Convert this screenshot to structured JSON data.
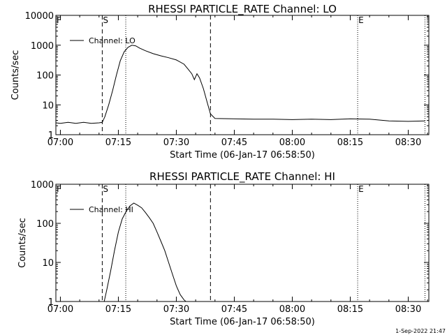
{
  "chart_data": [
    {
      "type": "line",
      "title": "RHESSI PARTICLE_RATE Channel: LO",
      "xlabel": "Start Time (06-Jan-17 06:58:50)",
      "ylabel": "Counts/sec",
      "yscale": "log",
      "xlim": [
        "06:58:50",
        "08:35:20"
      ],
      "ylim": [
        1,
        10000
      ],
      "x_ticks": [
        "07:00",
        "07:15",
        "07:30",
        "07:45",
        "08:00",
        "08:15",
        "08:30"
      ],
      "y_ticks": [
        "1",
        "10",
        "100",
        "1000",
        "10000"
      ],
      "legend": {
        "labels": [
          "Channel: LO"
        ],
        "position": "top-left"
      },
      "markers": [
        {
          "time": "07:10:50",
          "style": "dashed",
          "label": "S"
        },
        {
          "time": "07:16:55",
          "style": "dotted",
          "label": ""
        },
        {
          "time": "07:38:50",
          "style": "dashed",
          "label": ""
        },
        {
          "time": "08:16:55",
          "style": "dotted",
          "label": "E"
        },
        {
          "time": "08:34:20",
          "style": "dotted",
          "label": ""
        }
      ],
      "corner_label": "F",
      "series": [
        {
          "name": "Channel: LO",
          "points": [
            [
              "06:58:50",
              2.5
            ],
            [
              "07:00:00",
              2.4
            ],
            [
              "07:02:00",
              2.6
            ],
            [
              "07:04:00",
              2.4
            ],
            [
              "07:06:00",
              2.6
            ],
            [
              "07:08:00",
              2.4
            ],
            [
              "07:10:00",
              2.5
            ],
            [
              "07:10:50",
              2.6
            ],
            [
              "07:11:30",
              4
            ],
            [
              "07:12:30",
              10
            ],
            [
              "07:13:30",
              30
            ],
            [
              "07:14:30",
              100
            ],
            [
              "07:15:30",
              300
            ],
            [
              "07:16:30",
              600
            ],
            [
              "07:17:30",
              850
            ],
            [
              "07:18:30",
              1000
            ],
            [
              "07:19:30",
              950
            ],
            [
              "07:20:30",
              800
            ],
            [
              "07:22:00",
              650
            ],
            [
              "07:24:00",
              520
            ],
            [
              "07:26:00",
              440
            ],
            [
              "07:28:00",
              380
            ],
            [
              "07:30:00",
              320
            ],
            [
              "07:32:00",
              230
            ],
            [
              "07:33:00",
              160
            ],
            [
              "07:34:00",
              110
            ],
            [
              "07:34:40",
              70
            ],
            [
              "07:35:20",
              110
            ],
            [
              "07:36:00",
              80
            ],
            [
              "07:37:00",
              35
            ],
            [
              "07:38:00",
              12
            ],
            [
              "07:38:50",
              5
            ],
            [
              "07:40:00",
              3.5
            ],
            [
              "07:45:00",
              3.4
            ],
            [
              "07:50:00",
              3.3
            ],
            [
              "07:55:00",
              3.3
            ],
            [
              "08:00:00",
              3.2
            ],
            [
              "08:05:00",
              3.3
            ],
            [
              "08:10:00",
              3.2
            ],
            [
              "08:15:00",
              3.4
            ],
            [
              "08:20:00",
              3.3
            ],
            [
              "08:25:00",
              2.9
            ],
            [
              "08:30:00",
              2.8
            ],
            [
              "08:34:20",
              2.9
            ]
          ]
        }
      ]
    },
    {
      "type": "line",
      "title": "RHESSI PARTICLE_RATE Channel: HI",
      "xlabel": "Start Time (06-Jan-17 06:58:50)",
      "ylabel": "Counts/sec",
      "yscale": "log",
      "xlim": [
        "06:58:50",
        "08:35:20"
      ],
      "ylim": [
        1,
        1000
      ],
      "x_ticks": [
        "07:00",
        "07:15",
        "07:30",
        "07:45",
        "08:00",
        "08:15",
        "08:30"
      ],
      "y_ticks": [
        "1",
        "10",
        "100",
        "1000"
      ],
      "legend": {
        "labels": [
          "Channel: HI"
        ],
        "position": "top-left"
      },
      "markers": [
        {
          "time": "07:10:50",
          "style": "dashed",
          "label": "S"
        },
        {
          "time": "07:16:55",
          "style": "dotted",
          "label": ""
        },
        {
          "time": "07:38:50",
          "style": "dashed",
          "label": ""
        },
        {
          "time": "08:16:55",
          "style": "dotted",
          "label": "E"
        },
        {
          "time": "08:34:20",
          "style": "dotted",
          "label": ""
        }
      ],
      "corner_label": "F",
      "series": [
        {
          "name": "Channel: HI",
          "points": [
            [
              "07:11:20",
              1
            ],
            [
              "07:12:00",
              2
            ],
            [
              "07:13:00",
              6
            ],
            [
              "07:14:00",
              20
            ],
            [
              "07:15:00",
              60
            ],
            [
              "07:16:00",
              130
            ],
            [
              "07:17:00",
              200
            ],
            [
              "07:18:00",
              280
            ],
            [
              "07:19:00",
              330
            ],
            [
              "07:20:00",
              290
            ],
            [
              "07:21:00",
              250
            ],
            [
              "07:22:00",
              190
            ],
            [
              "07:23:00",
              140
            ],
            [
              "07:24:00",
              100
            ],
            [
              "07:25:00",
              60
            ],
            [
              "07:26:00",
              35
            ],
            [
              "07:27:00",
              20
            ],
            [
              "07:28:00",
              10
            ],
            [
              "07:29:00",
              5
            ],
            [
              "07:30:00",
              2.5
            ],
            [
              "07:31:00",
              1.5
            ],
            [
              "07:32:00",
              1.1
            ],
            [
              "07:32:30",
              1
            ]
          ]
        }
      ]
    }
  ],
  "timestamp": "1-Sep-2022 21:47"
}
